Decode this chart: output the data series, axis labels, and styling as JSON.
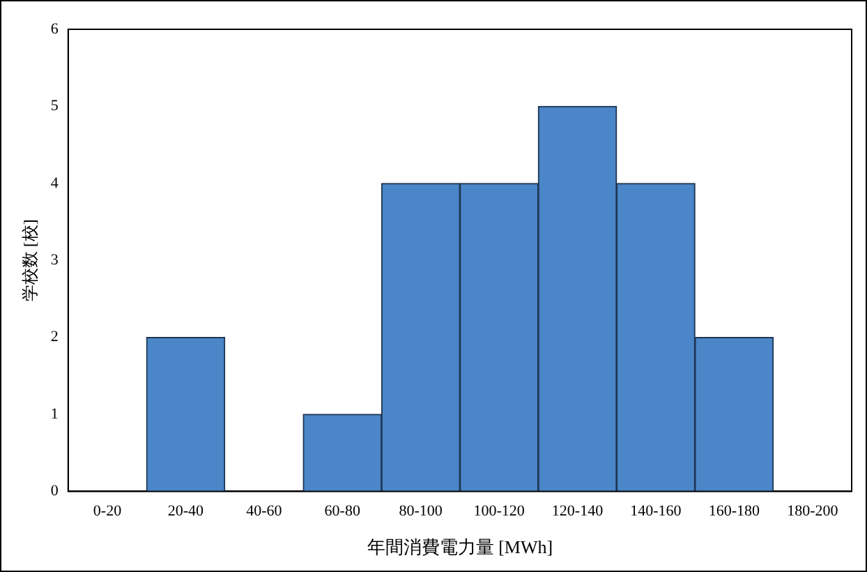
{
  "chart_data": {
    "type": "bar",
    "xlabel": "年間消費電力量 [MWh]",
    "ylabel": "学校数 [校]",
    "categories": [
      "0-20",
      "20-40",
      "40-60",
      "60-80",
      "80-100",
      "100-120",
      "120-140",
      "140-160",
      "160-180",
      "180-200"
    ],
    "values": [
      0,
      2,
      0,
      1,
      4,
      4,
      5,
      4,
      2,
      0
    ],
    "color": "#4a86c8",
    "ylim": [
      0,
      6
    ],
    "yticks": [
      0,
      1,
      2,
      3,
      4,
      5,
      6
    ],
    "grid": false,
    "legend": false
  }
}
